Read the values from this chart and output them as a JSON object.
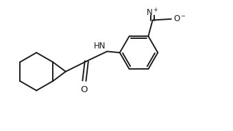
{
  "bg_color": "#ffffff",
  "line_color": "#1a1a1a",
  "line_width": 1.4,
  "font_size": 8.5,
  "figsize": [
    3.4,
    1.92
  ],
  "dpi": 100,
  "xlim": [
    0,
    10
  ],
  "ylim": [
    -0.5,
    4.5
  ]
}
